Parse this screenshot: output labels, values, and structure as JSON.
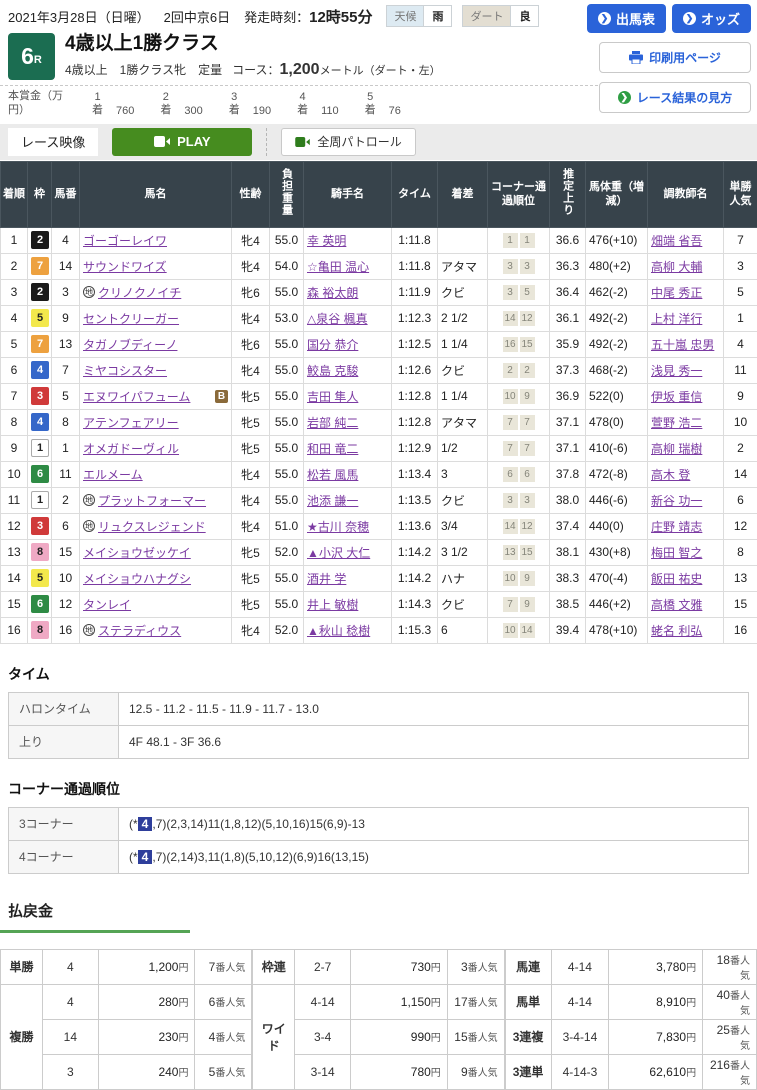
{
  "header": {
    "date_line": "2021年3月28日（日曜）",
    "meeting": "2回中京6日",
    "start_label": "発走時刻：",
    "start_time": "12時55分",
    "weather_label": "天候",
    "weather_value": "雨",
    "track_label": "ダート",
    "track_value": "良",
    "buttons": {
      "entries": "出馬表",
      "odds": "オッズ",
      "print": "印刷用ページ",
      "guide": "レース結果の見方"
    }
  },
  "race": {
    "number": "6",
    "number_suffix": "R",
    "title": "4歳以上1勝クラス",
    "conditions": "4歳以上　1勝クラス牝　定量",
    "course_label": "コース：",
    "course_value": "1,200",
    "course_unit": "メートル（ダート・左）"
  },
  "prize": {
    "label": "本賞金（万円）",
    "places": [
      "1",
      "2",
      "3",
      "4",
      "5"
    ],
    "place_suffix": "着",
    "amounts": [
      "760",
      "300",
      "190",
      "110",
      "76"
    ]
  },
  "video": {
    "label": "レース映像",
    "play": "PLAY",
    "patrol": "全周パトロール"
  },
  "results": {
    "headers": [
      {
        "label": "着順"
      },
      {
        "label": "枠"
      },
      {
        "label": "馬番"
      },
      {
        "label": "馬名"
      },
      {
        "label": "性齢"
      },
      {
        "label": "負担重量",
        "vertical": true
      },
      {
        "label": "騎手名"
      },
      {
        "label": "タイム"
      },
      {
        "label": "着差"
      },
      {
        "label": "コーナー通過順位"
      },
      {
        "label": "推定上り",
        "vertical": true
      },
      {
        "label": "馬体重（増減）"
      },
      {
        "label": "調教師名"
      },
      {
        "label": "単勝人気"
      }
    ],
    "rows": [
      {
        "pos": "1",
        "frame": "2",
        "num": "4",
        "mark": "",
        "name": "ゴーゴーレイワ",
        "bflag": false,
        "sexage": "牝4",
        "weight": "55.0",
        "jockey": "幸 英明",
        "time": "1:11.8",
        "margin": "",
        "corner": [
          "1",
          "1"
        ],
        "last3f": "36.6",
        "hweight": "476(+10)",
        "trainer": "畑端 省吾",
        "pop": "7"
      },
      {
        "pos": "2",
        "frame": "7",
        "num": "14",
        "mark": "",
        "name": "サウンドワイズ",
        "bflag": false,
        "sexage": "牝4",
        "weight": "54.0",
        "jockey": "☆亀田 温心",
        "time": "1:11.8",
        "margin": "アタマ",
        "corner": [
          "3",
          "3"
        ],
        "last3f": "36.3",
        "hweight": "480(+2)",
        "trainer": "高柳 大輔",
        "pop": "3"
      },
      {
        "pos": "3",
        "frame": "2",
        "num": "3",
        "mark": "地",
        "name": "クリノクノイチ",
        "bflag": false,
        "sexage": "牝6",
        "weight": "55.0",
        "jockey": "森 裕太朗",
        "time": "1:11.9",
        "margin": "クビ",
        "corner": [
          "3",
          "5"
        ],
        "last3f": "36.4",
        "hweight": "462(-2)",
        "trainer": "中尾 秀正",
        "pop": "5"
      },
      {
        "pos": "4",
        "frame": "5",
        "num": "9",
        "mark": "",
        "name": "セントクリーガー",
        "bflag": false,
        "sexage": "牝4",
        "weight": "53.0",
        "jockey": "△泉谷 楓真",
        "time": "1:12.3",
        "margin": "2 1/2",
        "corner": [
          "14",
          "12"
        ],
        "last3f": "36.1",
        "hweight": "492(-2)",
        "trainer": "上村 洋行",
        "pop": "1"
      },
      {
        "pos": "5",
        "frame": "7",
        "num": "13",
        "mark": "",
        "name": "タガノブディーノ",
        "bflag": false,
        "sexage": "牝6",
        "weight": "55.0",
        "jockey": "国分 恭介",
        "time": "1:12.5",
        "margin": "1 1/4",
        "corner": [
          "16",
          "15"
        ],
        "last3f": "35.9",
        "hweight": "492(-2)",
        "trainer": "五十嵐 忠男",
        "pop": "4"
      },
      {
        "pos": "6",
        "frame": "4",
        "num": "7",
        "mark": "",
        "name": "ミヤコシスター",
        "bflag": false,
        "sexage": "牝4",
        "weight": "55.0",
        "jockey": "鮫島 克駿",
        "time": "1:12.6",
        "margin": "クビ",
        "corner": [
          "2",
          "2"
        ],
        "last3f": "37.3",
        "hweight": "468(-2)",
        "trainer": "浅見 秀一",
        "pop": "11"
      },
      {
        "pos": "7",
        "frame": "3",
        "num": "5",
        "mark": "",
        "name": "エヌワイパフューム",
        "bflag": true,
        "sexage": "牝5",
        "weight": "55.0",
        "jockey": "吉田 隼人",
        "time": "1:12.8",
        "margin": "1 1/4",
        "corner": [
          "10",
          "9"
        ],
        "last3f": "36.9",
        "hweight": "522(0)",
        "trainer": "伊坂 重信",
        "pop": "9"
      },
      {
        "pos": "8",
        "frame": "4",
        "num": "8",
        "mark": "",
        "name": "アテンフェアリー",
        "bflag": false,
        "sexage": "牝5",
        "weight": "55.0",
        "jockey": "岩部 純二",
        "time": "1:12.8",
        "margin": "アタマ",
        "corner": [
          "7",
          "7"
        ],
        "last3f": "37.1",
        "hweight": "478(0)",
        "trainer": "萱野 浩二",
        "pop": "10"
      },
      {
        "pos": "9",
        "frame": "1",
        "num": "1",
        "mark": "",
        "name": "オメガドーヴィル",
        "bflag": false,
        "sexage": "牝5",
        "weight": "55.0",
        "jockey": "和田 竜二",
        "time": "1:12.9",
        "margin": "1/2",
        "corner": [
          "7",
          "7"
        ],
        "last3f": "37.1",
        "hweight": "410(-6)",
        "trainer": "高柳 瑞樹",
        "pop": "2"
      },
      {
        "pos": "10",
        "frame": "6",
        "num": "11",
        "mark": "",
        "name": "エルメーム",
        "bflag": false,
        "sexage": "牝4",
        "weight": "55.0",
        "jockey": "松若 風馬",
        "time": "1:13.4",
        "margin": "3",
        "corner": [
          "6",
          "6"
        ],
        "last3f": "37.8",
        "hweight": "472(-8)",
        "trainer": "高木 登",
        "pop": "14"
      },
      {
        "pos": "11",
        "frame": "1",
        "num": "2",
        "mark": "地",
        "name": "プラットフォーマー",
        "bflag": false,
        "sexage": "牝4",
        "weight": "55.0",
        "jockey": "池添 謙一",
        "time": "1:13.5",
        "margin": "クビ",
        "corner": [
          "3",
          "3"
        ],
        "last3f": "38.0",
        "hweight": "446(-6)",
        "trainer": "新谷 功一",
        "pop": "6"
      },
      {
        "pos": "12",
        "frame": "3",
        "num": "6",
        "mark": "地",
        "name": "リュクスレジェンド",
        "bflag": false,
        "sexage": "牝4",
        "weight": "51.0",
        "jockey": "★古川 奈穂",
        "time": "1:13.6",
        "margin": "3/4",
        "corner": [
          "14",
          "12"
        ],
        "last3f": "37.4",
        "hweight": "440(0)",
        "trainer": "庄野 靖志",
        "pop": "12"
      },
      {
        "pos": "13",
        "frame": "8",
        "num": "15",
        "mark": "",
        "name": "メイショウゼッケイ",
        "bflag": false,
        "sexage": "牝5",
        "weight": "52.0",
        "jockey": "▲小沢 大仁",
        "time": "1:14.2",
        "margin": "3 1/2",
        "corner": [
          "13",
          "15"
        ],
        "last3f": "38.1",
        "hweight": "430(+8)",
        "trainer": "梅田 智之",
        "pop": "8"
      },
      {
        "pos": "14",
        "frame": "5",
        "num": "10",
        "mark": "",
        "name": "メイショウハナグシ",
        "bflag": false,
        "sexage": "牝5",
        "weight": "55.0",
        "jockey": "酒井 学",
        "time": "1:14.2",
        "margin": "ハナ",
        "corner": [
          "10",
          "9"
        ],
        "last3f": "38.3",
        "hweight": "470(-4)",
        "trainer": "飯田 祐史",
        "pop": "13"
      },
      {
        "pos": "15",
        "frame": "6",
        "num": "12",
        "mark": "",
        "name": "タンレイ",
        "bflag": false,
        "sexage": "牝5",
        "weight": "55.0",
        "jockey": "井上 敏樹",
        "time": "1:14.3",
        "margin": "クビ",
        "corner": [
          "7",
          "9"
        ],
        "last3f": "38.5",
        "hweight": "446(+2)",
        "trainer": "高橋 文雅",
        "pop": "15"
      },
      {
        "pos": "16",
        "frame": "8",
        "num": "16",
        "mark": "地",
        "name": "ステラディウス",
        "bflag": false,
        "sexage": "牝4",
        "weight": "52.0",
        "jockey": "▲秋山 稔樹",
        "time": "1:15.3",
        "margin": "6",
        "corner": [
          "10",
          "14"
        ],
        "last3f": "39.4",
        "hweight": "478(+10)",
        "trainer": "蛯名 利弘",
        "pop": "16"
      }
    ]
  },
  "time_section": {
    "title": "タイム",
    "rows": [
      {
        "label": "ハロンタイム",
        "value": "12.5 - 11.2 - 11.5 - 11.9 - 11.7 - 13.0"
      },
      {
        "label": "上り",
        "value": "4F 48.1 - 3F 36.6"
      }
    ]
  },
  "corner_section": {
    "title": "コーナー通過順位",
    "rows": [
      {
        "label": "3コーナー",
        "pre": "(*",
        "highlight": "4",
        "post": ",7)(2,3,14)11(1,8,12)(5,10,16)15(6,9)-13"
      },
      {
        "label": "4コーナー",
        "pre": "(*",
        "highlight": "4",
        "post": ",7)(2,14)3,11(1,8)(5,10,12)(6,9)16(13,15)"
      }
    ]
  },
  "payout": {
    "title": "払戻金",
    "yen_suffix": "円",
    "pop_suffix": "番人気",
    "groups": [
      [
        {
          "label": "単勝",
          "rows": [
            {
              "combo": "4",
              "amount": "1,200",
              "pop": "7"
            }
          ]
        },
        {
          "label": "複勝",
          "rows": [
            {
              "combo": "4",
              "amount": "280",
              "pop": "6"
            },
            {
              "combo": "14",
              "amount": "230",
              "pop": "4"
            },
            {
              "combo": "3",
              "amount": "240",
              "pop": "5"
            }
          ]
        }
      ],
      [
        {
          "label": "枠連",
          "rows": [
            {
              "combo": "2-7",
              "amount": "730",
              "pop": "3"
            }
          ]
        },
        {
          "label": "ワイド",
          "rows": [
            {
              "combo": "4-14",
              "amount": "1,150",
              "pop": "17"
            },
            {
              "combo": "3-4",
              "amount": "990",
              "pop": "15"
            },
            {
              "combo": "3-14",
              "amount": "780",
              "pop": "9"
            }
          ]
        }
      ],
      [
        {
          "label": "馬連",
          "rows": [
            {
              "combo": "4-14",
              "amount": "3,780",
              "pop": "18"
            }
          ]
        },
        {
          "label": "馬単",
          "rows": [
            {
              "combo": "4-14",
              "amount": "8,910",
              "pop": "40"
            }
          ]
        },
        {
          "label": "3連複",
          "rows": [
            {
              "combo": "3-4-14",
              "amount": "7,830",
              "pop": "25"
            }
          ]
        },
        {
          "label": "3連単",
          "rows": [
            {
              "combo": "4-14-3",
              "amount": "62,610",
              "pop": "216"
            }
          ]
        }
      ]
    ]
  }
}
